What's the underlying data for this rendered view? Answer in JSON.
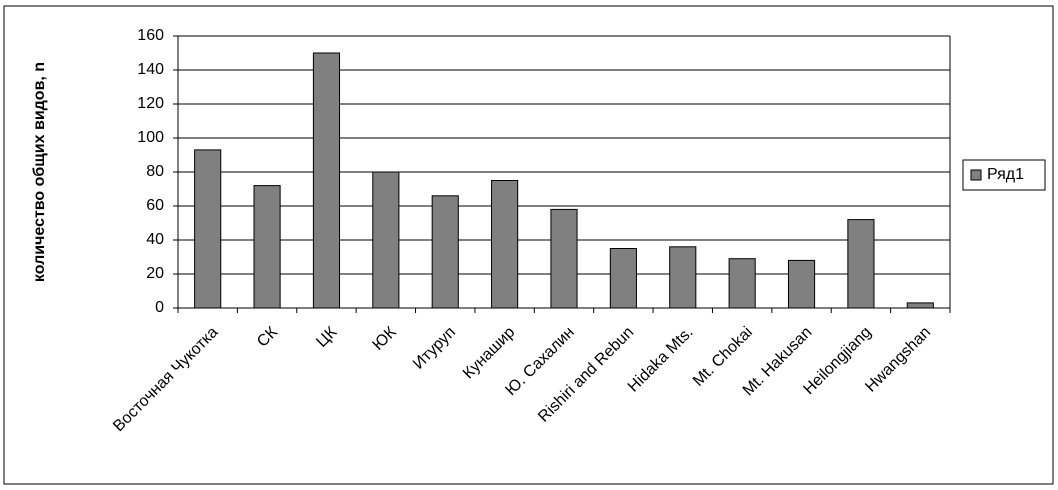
{
  "chart_data": {
    "type": "bar",
    "y_label": "количество общих видов, n",
    "categories": [
      "Восточная Чукотка",
      "СК",
      "ЦК",
      "ЮК",
      "Итуруп",
      "Кунашир",
      "Ю. Сахалин",
      "Rishiri and Rebun",
      "Hidaka Mts.",
      "Mt. Chokai",
      "Mt. Hakusan",
      "Heilongjiang",
      "Hwangshan"
    ],
    "series": [
      {
        "name": "Ряд1",
        "color": "#808080",
        "values": [
          93,
          72,
          150,
          80,
          66,
          75,
          58,
          35,
          36,
          29,
          28,
          52,
          3
        ]
      }
    ],
    "ylim": [
      0,
      160
    ],
    "yticks": [
      0,
      20,
      40,
      60,
      80,
      100,
      120,
      140,
      160
    ],
    "grid": true,
    "legend": "right"
  }
}
